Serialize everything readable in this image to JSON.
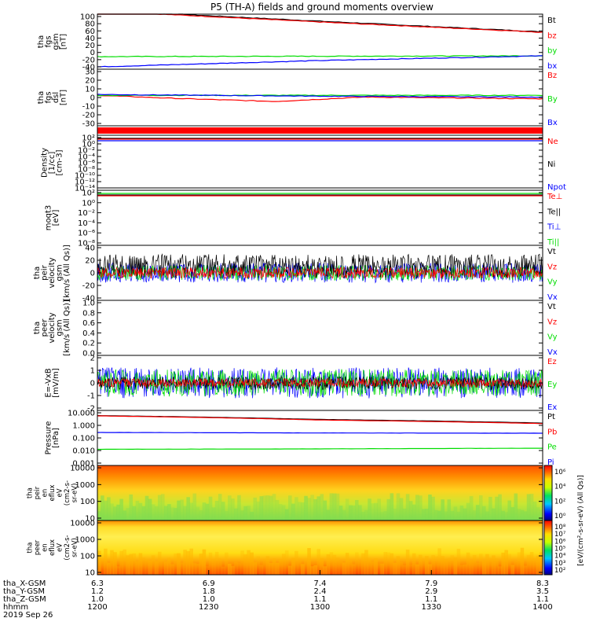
{
  "title": "P5 (TH-A) fields and ground moments overview",
  "colors": {
    "black": "#000000",
    "red": "#ff0000",
    "green": "#00dd00",
    "blue": "#0000ff"
  },
  "chart_data": [
    {
      "type": "line",
      "panel": "fgs-gsm-b",
      "ylabel": [
        "tha",
        "fgs",
        "gsm",
        "[nT]"
      ],
      "yticks": [
        "100",
        "80",
        "60",
        "40",
        "20",
        "0",
        "-20",
        "-40"
      ],
      "ylim": [
        -40,
        100
      ],
      "legend": [
        "Bt",
        "bz",
        "by",
        "bx"
      ],
      "series": [
        {
          "name": "Bt",
          "color": "black",
          "x": [
            0,
            0.5,
            1
          ],
          "values": [
            110,
            82,
            55
          ]
        },
        {
          "name": "bz",
          "color": "red",
          "x": [
            0,
            0.5,
            1
          ],
          "values": [
            108,
            80,
            54
          ]
        },
        {
          "name": "by",
          "color": "green",
          "x": [
            0,
            0.5,
            1
          ],
          "values": [
            -8,
            -7,
            -6
          ]
        },
        {
          "name": "bx",
          "color": "blue",
          "x": [
            0,
            0.5,
            1
          ],
          "values": [
            -34,
            -18,
            -6
          ]
        }
      ]
    },
    {
      "type": "line",
      "panel": "fgs-dsl",
      "ylabel": [
        "tha",
        "fgs",
        "dsl",
        "[nT]"
      ],
      "yticks": [
        "30",
        "20",
        "10",
        "0",
        "-10",
        "-20",
        "-30"
      ],
      "ylim": [
        -35,
        30
      ],
      "legend": [
        "Bz",
        "By",
        "Bx"
      ],
      "series": [
        {
          "name": "Bz",
          "color": "red",
          "x": [
            0,
            0.2,
            0.4,
            0.6,
            0.8,
            1
          ],
          "values": [
            0,
            -4,
            -7,
            -2,
            -3,
            -4
          ]
        },
        {
          "name": "By",
          "color": "green",
          "x": [
            0,
            0.5,
            1
          ],
          "values": [
            0,
            0,
            0
          ]
        },
        {
          "name": "Bx",
          "color": "blue",
          "x": [
            0,
            0.5,
            1
          ],
          "values": [
            1,
            -1,
            -2
          ]
        }
      ]
    },
    {
      "type": "line",
      "panel": "density",
      "ylabel": [
        "Density",
        "[1/cc]",
        "[cm-3]"
      ],
      "yticks": [
        "10²",
        "10⁰",
        "10⁻²",
        "10⁻⁴",
        "10⁻⁶",
        "10⁻⁸",
        "10⁻¹⁰",
        "10⁻¹²",
        "10⁻¹⁴"
      ],
      "legend": [
        "Ne",
        "Ni",
        "Npot"
      ]
    },
    {
      "type": "line",
      "panel": "temperature",
      "ylabel": [
        "moqt3",
        "[eV]"
      ],
      "yticks": [
        "10²",
        "10⁰",
        "10⁻²",
        "10⁻⁴",
        "10⁻⁶",
        "10⁻⁸"
      ],
      "legend": [
        "Te⊥",
        "Te||",
        "Ti⊥",
        "Ti||"
      ]
    },
    {
      "type": "line",
      "panel": "peir-velocity",
      "ylabel": [
        "tha",
        "peir",
        "velocity",
        "gsm",
        "[km/s (All Qs)]"
      ],
      "yticks": [
        "40",
        "20",
        "0",
        "-20",
        "-40"
      ],
      "ylim": [
        -40,
        40
      ],
      "legend": [
        "Vt",
        "Vz",
        "Vy",
        "Vx"
      ]
    },
    {
      "type": "line",
      "panel": "peer-velocity",
      "ylabel": [
        "tha",
        "peer",
        "velocity",
        "gsm",
        "[km/s (All Qs)]"
      ],
      "yticks": [
        "1.0",
        "0.8",
        "0.6",
        "0.4",
        "0.2",
        "0.0"
      ],
      "ylim": [
        0,
        1
      ],
      "legend": [
        "Vt",
        "Vz",
        "Vy",
        "Vx"
      ]
    },
    {
      "type": "line",
      "panel": "exb",
      "ylabel": [
        "E=-VxB",
        "[mV/m]"
      ],
      "yticks": [
        "2",
        "1",
        "0",
        "-1",
        "-2"
      ],
      "ylim": [
        -2.5,
        2.5
      ],
      "legend": [
        "Ez",
        "Ey",
        "Ex"
      ]
    },
    {
      "type": "line",
      "panel": "pressure",
      "ylabel": [
        "Pressure",
        "[nPa]"
      ],
      "yticks": [
        "10.000",
        "1.000",
        "0.100",
        "0.010",
        "0.001"
      ],
      "legend": [
        "Pt",
        "Pb",
        "Pe",
        "Pi"
      ],
      "series": [
        {
          "name": "Pt",
          "color": "black",
          "x": [
            0,
            0.5,
            1
          ],
          "values": [
            4.2,
            2.2,
            1.2
          ]
        },
        {
          "name": "Pb",
          "color": "red",
          "x": [
            0,
            0.5,
            1
          ],
          "values": [
            4.0,
            2.0,
            1.1
          ]
        },
        {
          "name": "Pe",
          "color": "green",
          "x": [
            0,
            0.5,
            1
          ],
          "values": [
            0.015,
            0.016,
            0.018
          ]
        },
        {
          "name": "Pi",
          "color": "blue",
          "x": [
            0,
            0.5,
            1
          ],
          "values": [
            0.25,
            0.23,
            0.22
          ]
        }
      ]
    },
    {
      "type": "heatmap",
      "panel": "peir-en-eflux",
      "ylabel": [
        "tha",
        "peir",
        "en",
        "eflux",
        "eV",
        "(cm2-s-",
        "sr-eV)"
      ],
      "yticks": [
        "10000",
        "1000",
        "100",
        "10"
      ]
    },
    {
      "type": "heatmap",
      "panel": "peer-en-eflux",
      "ylabel": [
        "tha",
        "peer",
        "en",
        "eflux",
        "eV",
        "(cm2-s-",
        "sr-eV)"
      ],
      "yticks": [
        "10000",
        "1000",
        "100",
        "10"
      ]
    }
  ],
  "colorbars": [
    {
      "ticks": [
        "10⁶",
        "10⁴",
        "10²",
        "10⁰"
      ],
      "label": "[eV/(cm²-s-sr-eV) (All Qs)]"
    },
    {
      "ticks": [
        "10⁸",
        "10⁷",
        "10⁶",
        "10⁵",
        "10⁴",
        "10³",
        "10²"
      ],
      "label": "[eV/(cm²-s-sr-eV)]"
    }
  ],
  "xaxis": {
    "rows": [
      {
        "label": "tha_X-GSM",
        "values": [
          "6.3",
          "6.9",
          "7.4",
          "7.9",
          "8.3"
        ]
      },
      {
        "label": "tha_Y-GSM",
        "values": [
          "1.2",
          "1.8",
          "2.4",
          "2.9",
          "3.5"
        ]
      },
      {
        "label": "tha_Z-GSM",
        "values": [
          "1.0",
          "1.0",
          "1.1",
          "1.1",
          "1.1"
        ]
      },
      {
        "label": "hhmm",
        "values": [
          "1200",
          "1230",
          "1300",
          "1330",
          "1400"
        ]
      }
    ],
    "date": "2019 Sep 26"
  }
}
